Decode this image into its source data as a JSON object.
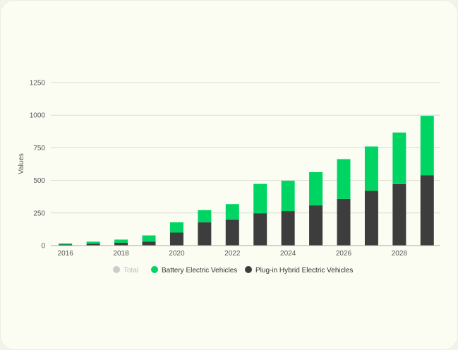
{
  "chart_data": {
    "type": "bar",
    "stacked": true,
    "ylabel": "Values",
    "ylim": [
      0,
      1250
    ],
    "yticks": [
      0,
      250,
      500,
      750,
      1000,
      1250
    ],
    "xtick_labels": [
      "2016",
      "2018",
      "2020",
      "2022",
      "2024",
      "2026",
      "2028"
    ],
    "categories": [
      "2016",
      "2017",
      "2018",
      "2019",
      "2020",
      "2021",
      "2022",
      "2023",
      "2024",
      "2025",
      "2026",
      "2027",
      "2028",
      "2029"
    ],
    "series": [
      {
        "name": "Plug-in Hybrid Electric Vehicles",
        "color": "#3d3d3d",
        "values": [
          8,
          14,
          22,
          30,
          100,
          178,
          198,
          248,
          265,
          308,
          358,
          420,
          472,
          540
        ]
      },
      {
        "name": "Battery Electric Vehicles",
        "color": "#00d563",
        "values": [
          8,
          16,
          24,
          48,
          78,
          94,
          120,
          225,
          232,
          255,
          305,
          340,
          395,
          455
        ]
      }
    ],
    "legend": {
      "position": "bottom",
      "items": [
        {
          "label": "Total",
          "color": "#cccccc",
          "hidden": true
        },
        {
          "label": "Battery Electric Vehicles",
          "color": "#00d563",
          "hidden": false
        },
        {
          "label": "Plug-in Hybrid Electric Vehicles",
          "color": "#3d3d3d",
          "hidden": false
        }
      ]
    },
    "grid": true
  }
}
